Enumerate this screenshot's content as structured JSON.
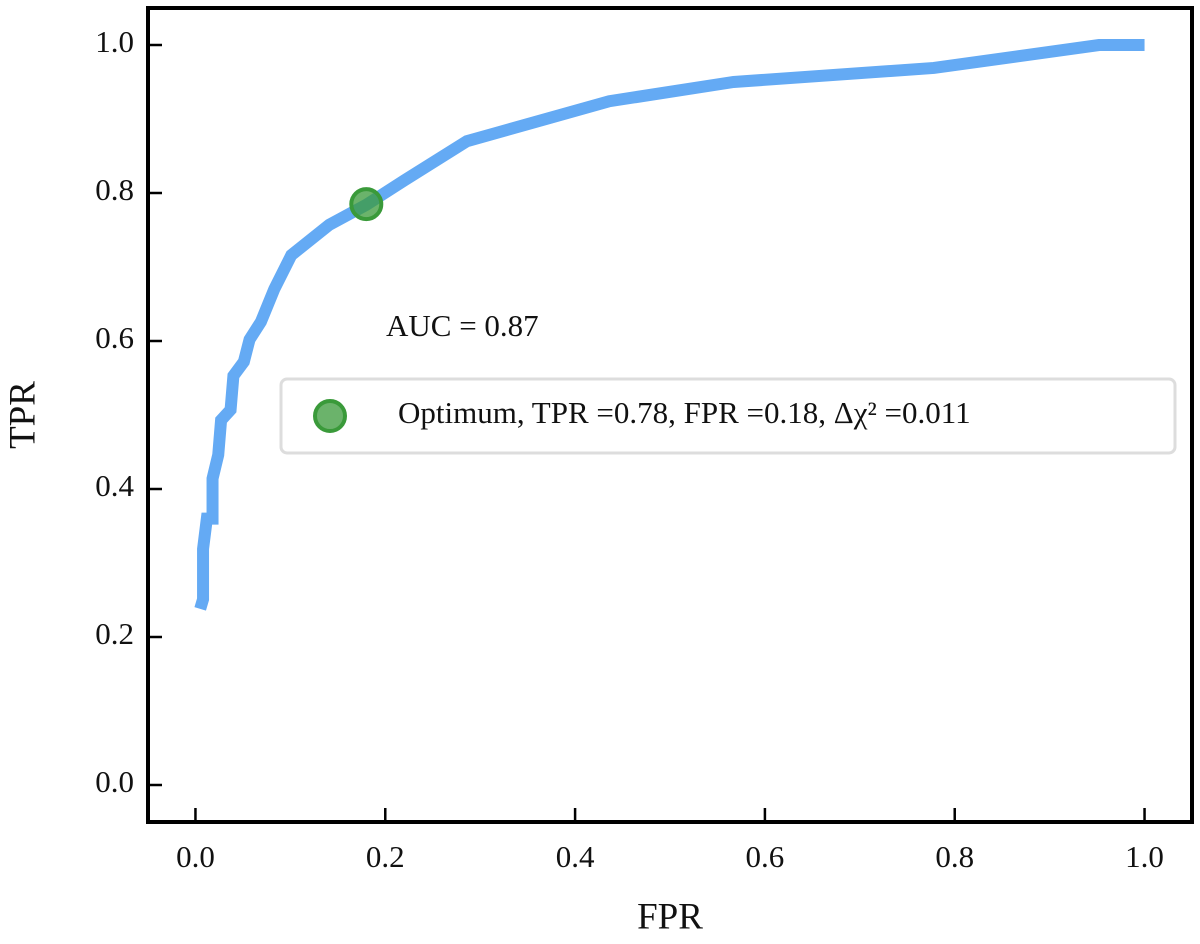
{
  "chart_data": {
    "type": "line",
    "xlabel": "FPR",
    "ylabel": "TPR",
    "xlim": [
      -0.05,
      1.05
    ],
    "ylim": [
      -0.05,
      1.05
    ],
    "xticks": [
      {
        "value": 0,
        "label": "0.0"
      },
      0.2,
      0.4,
      0.6,
      0.8,
      {
        "value": 1,
        "label": "1.0"
      }
    ],
    "yticks": [
      {
        "value": 0,
        "label": "0.0"
      },
      0.2,
      0.4,
      0.6,
      0.8,
      {
        "value": 1,
        "label": "1.0"
      }
    ],
    "legend": "center right",
    "annotations": [
      {
        "text": "AUC = 0.87"
      }
    ],
    "series": [
      {
        "type": "line",
        "color": "#64aaf4",
        "x": [
          0.005,
          0.008,
          0.008,
          0.012,
          0.018,
          0.018,
          0.024,
          0.027,
          0.037,
          0.04,
          0.051,
          0.057,
          0.069,
          0.083,
          0.101,
          0.141,
          0.18,
          0.22,
          0.286,
          0.436,
          0.567,
          0.778,
          0.952,
          1.0
        ],
        "values": [
          0.238,
          0.251,
          0.319,
          0.36,
          0.36,
          0.414,
          0.446,
          0.493,
          0.507,
          0.553,
          0.572,
          0.602,
          0.626,
          0.67,
          0.716,
          0.757,
          0.784,
          0.817,
          0.87,
          0.924,
          0.95,
          0.969,
          1.0,
          1.0
        ]
      },
      {
        "type": "scatter",
        "name": "Optimum, TPR =0.78, FPR =0.18, Δχ² =0.011",
        "color": "#3a9a3a",
        "x": [
          0.18
        ],
        "values": [
          0.785
        ]
      }
    ]
  }
}
